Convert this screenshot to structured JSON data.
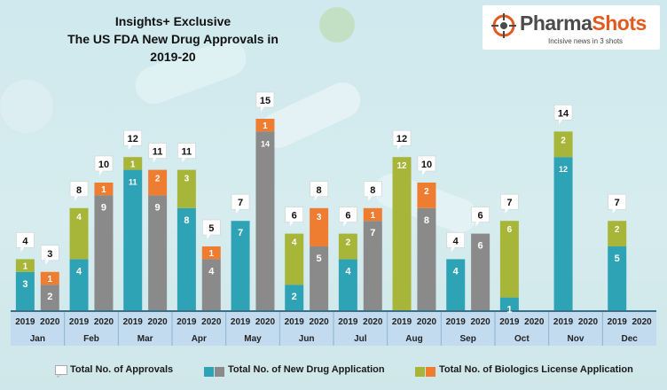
{
  "title": {
    "line1": "Insights+ Exclusive",
    "line2": "The US FDA New Drug Approvals in 2019-20"
  },
  "logo": {
    "part1": "Pharma",
    "part2": "Shots",
    "tagline": "Incisive news in 3 shots"
  },
  "colors": {
    "nda": "#2fa3b6",
    "nda_2020": "#8a8a8a",
    "bla": "#ee7d32",
    "bla_2019": "#a7b538",
    "total_box": "#ffffff"
  },
  "legend": {
    "total": "Total No. of Approvals",
    "nda": "Total No. of New Drug Application",
    "bla": "Total No. of Biologics License Application"
  },
  "chart_data": {
    "type": "bar",
    "stacked": true,
    "months": [
      "Jan",
      "Feb",
      "Mar",
      "Apr",
      "May",
      "Jun",
      "Jul",
      "Aug",
      "Sep",
      "Oct",
      "Nov",
      "Dec"
    ],
    "years": [
      "2019",
      "2020"
    ],
    "bars": [
      {
        "month": "Jan",
        "year": "2019",
        "nda": 3,
        "bla": 1,
        "total": 4
      },
      {
        "month": "Jan",
        "year": "2020",
        "nda": 2,
        "bla": 1,
        "total": 3
      },
      {
        "month": "Feb",
        "year": "2019",
        "nda": 4,
        "bla": 4,
        "total": 8
      },
      {
        "month": "Feb",
        "year": "2020",
        "nda": 9,
        "bla": 1,
        "total": 10
      },
      {
        "month": "Mar",
        "year": "2019",
        "nda": 11,
        "bla": 1,
        "total": 12
      },
      {
        "month": "Mar",
        "year": "2020",
        "nda": 9,
        "bla": 2,
        "total": 11
      },
      {
        "month": "Apr",
        "year": "2019",
        "nda": 8,
        "bla": 3,
        "total": 11
      },
      {
        "month": "Apr",
        "year": "2020",
        "nda": 4,
        "bla": 1,
        "total": 5
      },
      {
        "month": "May",
        "year": "2019",
        "nda": 7,
        "bla": 0,
        "total": 7
      },
      {
        "month": "May",
        "year": "2020",
        "nda": 14,
        "bla": 1,
        "total": 15
      },
      {
        "month": "Jun",
        "year": "2019",
        "nda": 2,
        "bla": 4,
        "total": 6
      },
      {
        "month": "Jun",
        "year": "2020",
        "nda": 5,
        "bla": 3,
        "total": 8
      },
      {
        "month": "Jul",
        "year": "2019",
        "nda": 4,
        "bla": 2,
        "total": 6
      },
      {
        "month": "Jul",
        "year": "2020",
        "nda": 7,
        "bla": 1,
        "total": 8
      },
      {
        "month": "Aug",
        "year": "2019",
        "nda": 0,
        "bla": 12,
        "total": 12
      },
      {
        "month": "Aug",
        "year": "2020",
        "nda": 8,
        "bla": 2,
        "total": 10
      },
      {
        "month": "Sep",
        "year": "2019",
        "nda": 4,
        "bla": 0,
        "total": 4
      },
      {
        "month": "Sep",
        "year": "2020",
        "nda": 6,
        "bla": 0,
        "total": 6
      },
      {
        "month": "Oct",
        "year": "2019",
        "nda": 1,
        "bla": 6,
        "total": 7
      },
      {
        "month": "Oct",
        "year": "2020",
        "nda": 0,
        "bla": 0,
        "total": null
      },
      {
        "month": "Nov",
        "year": "2019",
        "nda": 12,
        "bla": 2,
        "total": 14
      },
      {
        "month": "Nov",
        "year": "2020",
        "nda": 0,
        "bla": 0,
        "total": null
      },
      {
        "month": "Dec",
        "year": "2019",
        "nda": 5,
        "bla": 2,
        "total": 7
      },
      {
        "month": "Dec",
        "year": "2020",
        "nda": 0,
        "bla": 0,
        "total": null
      }
    ],
    "ylim": [
      0,
      15
    ]
  }
}
